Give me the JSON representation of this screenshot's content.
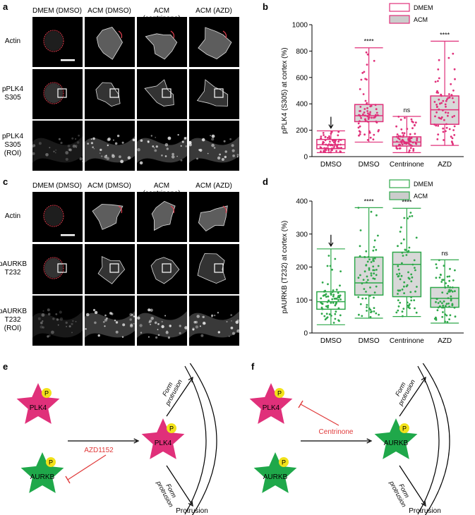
{
  "panels": {
    "a": "a",
    "b": "b",
    "c": "c",
    "d": "d",
    "e": "e",
    "f": "f"
  },
  "micrographs": {
    "columns": [
      "DMEM (DMSO)",
      "ACM (DMSO)",
      "ACM (centrinone)",
      "ACM (AZD)"
    ],
    "a_rows": [
      "Actin",
      "pPLK4\nS305",
      "pPLK4\nS305\n(ROI)"
    ],
    "c_rows": [
      "Actin",
      "pAURKB\nT232",
      "pAURKB\nT232\n(ROI)"
    ]
  },
  "chart_data": [
    {
      "type": "box",
      "panel": "b",
      "ylabel": "pPLK4 (S305) at cortex (%)",
      "ylim": [
        0,
        1000
      ],
      "yticks": [
        0,
        200,
        400,
        600,
        800,
        1000
      ],
      "categories": [
        "DMSO",
        "DMSO",
        "Centrinone",
        "AZD"
      ],
      "legend": [
        "DMEM",
        "ACM"
      ],
      "color": "#e0307a",
      "boxes": [
        {
          "group": "DMEM",
          "min": 30,
          "q1": 60,
          "median": 90,
          "q3": 130,
          "max": 195,
          "sig": "",
          "arrow": true
        },
        {
          "group": "ACM",
          "min": 110,
          "q1": 265,
          "median": 310,
          "q3": 395,
          "max": 825,
          "sig": "****",
          "arrow": false
        },
        {
          "group": "ACM",
          "min": 30,
          "q1": 80,
          "median": 110,
          "q3": 150,
          "max": 305,
          "sig": "ns",
          "arrow": false
        },
        {
          "group": "ACM",
          "min": 85,
          "q1": 245,
          "median": 355,
          "q3": 460,
          "max": 875,
          "sig": "****",
          "arrow": false
        }
      ]
    },
    {
      "type": "box",
      "panel": "d",
      "ylabel": "pAURKB (T232) at cortex (%)",
      "ylim": [
        0,
        400
      ],
      "yticks": [
        0,
        100,
        200,
        300,
        400
      ],
      "categories": [
        "DMSO",
        "DMSO",
        "Centrinone",
        "AZD"
      ],
      "legend": [
        "DMEM",
        "ACM"
      ],
      "color": "#2ea84a",
      "boxes": [
        {
          "group": "DMEM",
          "min": 25,
          "q1": 72,
          "median": 95,
          "q3": 125,
          "max": 255,
          "sig": "",
          "arrow": true
        },
        {
          "group": "ACM",
          "min": 45,
          "q1": 115,
          "median": 152,
          "q3": 230,
          "max": 380,
          "sig": "****",
          "arrow": false
        },
        {
          "group": "ACM",
          "min": 50,
          "q1": 110,
          "median": 208,
          "q3": 245,
          "max": 378,
          "sig": "****",
          "arrow": false
        },
        {
          "group": "ACM",
          "min": 30,
          "q1": 78,
          "median": 105,
          "q3": 138,
          "max": 222,
          "sig": "ns",
          "arrow": false
        }
      ]
    }
  ],
  "diagram_e": {
    "plk4": "PLK4",
    "aurkb": "AURKB",
    "phospho": "P",
    "inhibitor": "AZD1152",
    "form_protrusion": "Form\nprotrusion",
    "protrusion": "Protrusion",
    "center": "PLK4"
  },
  "diagram_f": {
    "plk4": "PLK4",
    "aurkb": "AURKB",
    "phospho": "P",
    "inhibitor": "Centrinone",
    "form_protrusion": "Form\nprotrusion",
    "protrusion": "Protrusion",
    "center": "AURKB"
  },
  "colors": {
    "pink": "#e0307a",
    "green": "#1fa84a",
    "yellow": "#f2e21a",
    "red": "#e03a3a"
  }
}
